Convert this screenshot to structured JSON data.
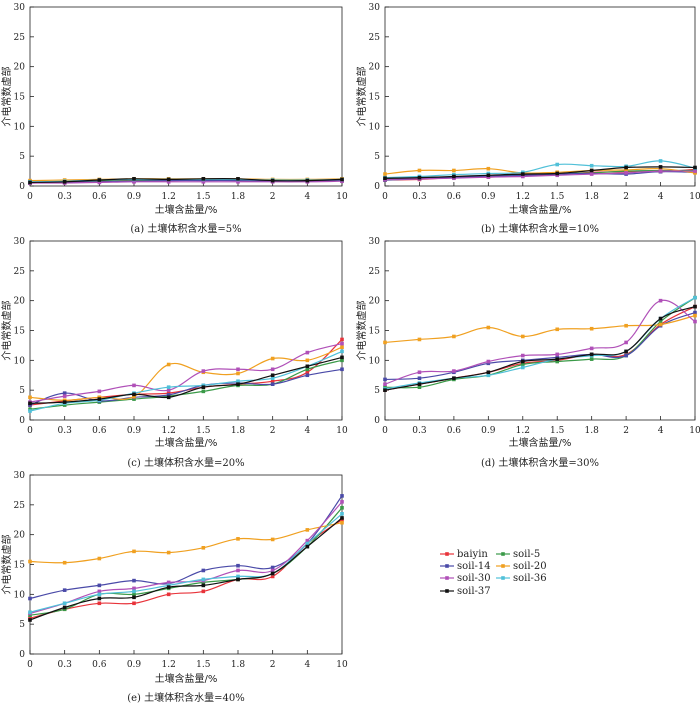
{
  "colors": {
    "baiyin": "#e8333a",
    "soil-5": "#3a9a48",
    "soil-14": "#4a4aa8",
    "soil-20": "#f0a020",
    "soil-30": "#b050b8",
    "soil-36": "#50c0d8",
    "soil-37": "#111111"
  },
  "legend": [
    "baiyin",
    "soil-5",
    "soil-14",
    "soil-20",
    "soil-30",
    "soil-36",
    "soil-37"
  ],
  "chart_data": [
    {
      "type": "line",
      "caption": "(a) 土壤体积含水量=5%",
      "xlabel": "土壤含盐量/%",
      "ylabel": "介电常数虚部",
      "categories": [
        "0",
        "0.3",
        "0.6",
        "0.9",
        "1.2",
        "1.5",
        "1.8",
        "2",
        "4",
        "10"
      ],
      "ylim": [
        0,
        30
      ],
      "yticks": [
        0,
        5,
        10,
        15,
        20,
        25,
        30
      ],
      "series": [
        {
          "name": "baiyin",
          "values": [
            0.5,
            0.6,
            0.8,
            0.9,
            0.9,
            1.0,
            0.9,
            0.8,
            0.8,
            0.9
          ]
        },
        {
          "name": "soil-5",
          "values": [
            0.6,
            0.7,
            0.9,
            1.0,
            1.0,
            1.1,
            1.0,
            0.9,
            0.9,
            1.0
          ]
        },
        {
          "name": "soil-14",
          "values": [
            0.5,
            0.6,
            0.7,
            0.8,
            0.9,
            0.9,
            0.9,
            0.8,
            0.8,
            0.9
          ]
        },
        {
          "name": "soil-20",
          "values": [
            0.9,
            1.0,
            1.1,
            1.2,
            1.2,
            1.2,
            1.2,
            1.1,
            1.1,
            1.2
          ]
        },
        {
          "name": "soil-30",
          "values": [
            0.5,
            0.5,
            0.6,
            0.7,
            0.7,
            0.7,
            0.7,
            0.7,
            0.7,
            0.8
          ]
        },
        {
          "name": "soil-36",
          "values": [
            0.7,
            0.8,
            1.0,
            1.1,
            1.1,
            1.1,
            1.1,
            1.0,
            1.0,
            1.1
          ]
        },
        {
          "name": "soil-37",
          "values": [
            0.6,
            0.7,
            1.0,
            1.2,
            1.1,
            1.2,
            1.2,
            0.9,
            0.9,
            1.1
          ]
        }
      ]
    },
    {
      "type": "line",
      "caption": "(b) 土壤体积含水量=10%",
      "xlabel": "土壤含盐量/%",
      "ylabel": "介电常数虚部",
      "categories": [
        "0",
        "0.3",
        "0.6",
        "0.9",
        "1.2",
        "1.5",
        "1.8",
        "2",
        "4",
        "10"
      ],
      "ylim": [
        0,
        30
      ],
      "yticks": [
        0,
        5,
        10,
        15,
        20,
        25,
        30
      ],
      "series": [
        {
          "name": "baiyin",
          "values": [
            1.0,
            1.1,
            1.4,
            1.5,
            1.7,
            2.0,
            2.3,
            2.4,
            2.4,
            2.8
          ]
        },
        {
          "name": "soil-5",
          "values": [
            1.2,
            1.3,
            1.5,
            1.7,
            1.9,
            2.1,
            2.2,
            2.5,
            2.6,
            2.6
          ]
        },
        {
          "name": "soil-14",
          "values": [
            1.0,
            1.2,
            1.5,
            1.6,
            1.8,
            2.0,
            2.1,
            2.0,
            2.4,
            2.3
          ]
        },
        {
          "name": "soil-20",
          "values": [
            2.0,
            2.6,
            2.6,
            2.9,
            2.2,
            2.3,
            2.6,
            2.7,
            2.9,
            2.2
          ]
        },
        {
          "name": "soil-30",
          "values": [
            1.1,
            1.2,
            1.3,
            1.5,
            1.6,
            1.8,
            2.0,
            2.2,
            2.5,
            2.5
          ]
        },
        {
          "name": "soil-36",
          "values": [
            1.4,
            1.6,
            1.9,
            2.1,
            2.3,
            3.6,
            3.4,
            3.3,
            4.2,
            3.0
          ]
        },
        {
          "name": "soil-37",
          "values": [
            1.3,
            1.4,
            1.6,
            1.8,
            2.0,
            2.1,
            2.6,
            3.1,
            3.2,
            3.1
          ]
        }
      ]
    },
    {
      "type": "line",
      "caption": "(c) 土壤体积含水量=20%",
      "xlabel": "土壤含盐量/%",
      "ylabel": "介电常数虚部",
      "categories": [
        "0",
        "0.3",
        "0.6",
        "0.9",
        "1.2",
        "1.5",
        "1.8",
        "2",
        "4",
        "10"
      ],
      "ylim": [
        0,
        30
      ],
      "yticks": [
        0,
        5,
        10,
        15,
        20,
        25,
        30
      ],
      "series": [
        {
          "name": "baiyin",
          "values": [
            2.5,
            3.2,
            3.8,
            4.3,
            4.5,
            5.5,
            6.0,
            6.5,
            8.0,
            13.5
          ]
        },
        {
          "name": "soil-5",
          "values": [
            1.8,
            2.5,
            3.0,
            3.5,
            4.0,
            4.8,
            5.8,
            6.0,
            8.5,
            10.0
          ]
        },
        {
          "name": "soil-14",
          "values": [
            2.5,
            4.5,
            3.2,
            3.8,
            4.2,
            5.8,
            6.2,
            6.0,
            7.5,
            8.5
          ]
        },
        {
          "name": "soil-20",
          "values": [
            3.8,
            3.3,
            3.8,
            3.9,
            9.3,
            8.0,
            7.8,
            10.3,
            10.0,
            12.2
          ]
        },
        {
          "name": "soil-30",
          "values": [
            3.0,
            4.0,
            4.8,
            5.8,
            5.0,
            8.2,
            8.5,
            8.5,
            11.3,
            12.8
          ]
        },
        {
          "name": "soil-36",
          "values": [
            1.5,
            2.8,
            3.3,
            4.5,
            5.5,
            5.8,
            6.5,
            7.0,
            9.0,
            11.5
          ]
        },
        {
          "name": "soil-37",
          "values": [
            2.8,
            3.0,
            3.5,
            4.3,
            3.8,
            5.5,
            6.0,
            7.5,
            9.0,
            10.5
          ]
        }
      ]
    },
    {
      "type": "line",
      "caption": "(d) 土壤体积含水量=30%",
      "xlabel": "土壤含盐量/%",
      "ylabel": "介电常数虚部",
      "categories": [
        "0",
        "0.3",
        "0.6",
        "0.9",
        "1.2",
        "1.5",
        "1.8",
        "2",
        "4",
        "10"
      ],
      "ylim": [
        0,
        30
      ],
      "yticks": [
        0,
        5,
        10,
        15,
        20,
        25,
        30
      ],
      "series": [
        {
          "name": "baiyin",
          "values": [
            5.0,
            6.0,
            7.0,
            8.0,
            9.5,
            10.0,
            11.0,
            11.0,
            16.0,
            19.0
          ]
        },
        {
          "name": "soil-5",
          "values": [
            5.5,
            5.5,
            6.8,
            7.5,
            9.3,
            9.8,
            10.2,
            10.8,
            16.5,
            20.5
          ]
        },
        {
          "name": "soil-14",
          "values": [
            6.8,
            7.0,
            8.0,
            9.5,
            10.0,
            10.5,
            11.0,
            10.8,
            15.8,
            18.0
          ]
        },
        {
          "name": "soil-20",
          "values": [
            13.0,
            13.5,
            14.0,
            15.5,
            14.0,
            15.2,
            15.3,
            15.8,
            16.0,
            17.5
          ]
        },
        {
          "name": "soil-30",
          "values": [
            6.0,
            8.0,
            8.2,
            9.8,
            10.8,
            11.0,
            12.0,
            13.0,
            20.0,
            16.5
          ]
        },
        {
          "name": "soil-36",
          "values": [
            5.2,
            6.2,
            7.0,
            7.5,
            8.8,
            10.2,
            10.8,
            11.5,
            17.0,
            20.5
          ]
        },
        {
          "name": "soil-37",
          "values": [
            5.0,
            6.0,
            7.0,
            8.0,
            9.8,
            10.2,
            11.0,
            11.5,
            17.0,
            19.0
          ]
        }
      ]
    },
    {
      "type": "line",
      "caption": "(e) 土壤体积含水量=40%",
      "xlabel": "土壤含盐量/%",
      "ylabel": "介电常数虚部",
      "categories": [
        "0",
        "0.3",
        "0.6",
        "0.9",
        "1.2",
        "1.5",
        "1.8",
        "2",
        "4",
        "10"
      ],
      "ylim": [
        0,
        30
      ],
      "yticks": [
        0,
        5,
        10,
        15,
        20,
        25,
        30
      ],
      "series": [
        {
          "name": "baiyin",
          "values": [
            6.0,
            7.5,
            8.5,
            8.5,
            10.0,
            10.5,
            12.5,
            13.0,
            18.5,
            22.5
          ]
        },
        {
          "name": "soil-5",
          "values": [
            6.5,
            7.5,
            10.0,
            10.0,
            11.0,
            12.0,
            12.5,
            13.5,
            18.0,
            24.5
          ]
        },
        {
          "name": "soil-14",
          "values": [
            9.3,
            10.7,
            11.5,
            12.3,
            11.8,
            14.0,
            14.8,
            14.5,
            18.5,
            26.5
          ]
        },
        {
          "name": "soil-20",
          "values": [
            15.5,
            15.3,
            16.0,
            17.2,
            17.0,
            17.8,
            19.3,
            19.2,
            20.8,
            22.0
          ]
        },
        {
          "name": "soil-30",
          "values": [
            6.8,
            8.5,
            10.5,
            11.0,
            12.0,
            12.3,
            14.0,
            14.0,
            19.0,
            25.5
          ]
        },
        {
          "name": "soil-36",
          "values": [
            7.0,
            8.5,
            10.0,
            10.5,
            11.5,
            12.5,
            13.0,
            13.5,
            18.5,
            23.5
          ]
        },
        {
          "name": "soil-37",
          "values": [
            5.7,
            7.8,
            9.3,
            9.5,
            11.2,
            11.5,
            12.5,
            13.5,
            18.0,
            22.8
          ]
        }
      ]
    }
  ]
}
